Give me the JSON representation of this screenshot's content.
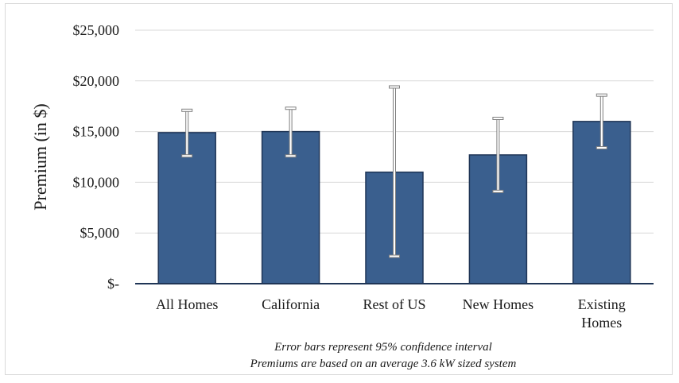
{
  "chart_data": {
    "type": "bar",
    "categories": [
      "All Homes",
      "California",
      "Rest of US",
      "New Homes",
      "Existing Homes"
    ],
    "category_lines": [
      [
        "All Homes"
      ],
      [
        "California"
      ],
      [
        "Rest of US"
      ],
      [
        "New Homes"
      ],
      [
        "Existing",
        "Homes"
      ]
    ],
    "values": [
      14900,
      15000,
      11000,
      12700,
      16000
    ],
    "error_low": [
      12600,
      12600,
      2700,
      9100,
      13400
    ],
    "error_high": [
      17100,
      17300,
      19400,
      16300,
      18600
    ],
    "ylabel": "Premium (in $)",
    "ylim": [
      0,
      25000
    ],
    "yticks": [
      0,
      5000,
      10000,
      15000,
      20000,
      25000
    ],
    "ytick_labels": [
      "$-",
      "$5,000",
      "$10,000",
      "$15,000",
      "$20,000",
      "$25,000"
    ],
    "notes": [
      "Error bars represent 95% confidence interval",
      "Premiums are based on an average 3.6 kW sized system"
    ],
    "grid": true,
    "colors": {
      "bar": "#3a5f8e",
      "bar_edge": "#1f3556",
      "gridline": "#d9d9d9",
      "axis": "#1f3556",
      "error_bar": "#bfbfbf"
    }
  }
}
